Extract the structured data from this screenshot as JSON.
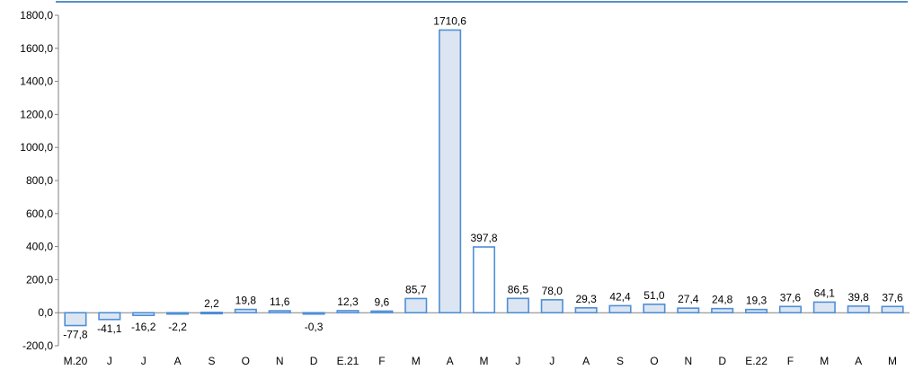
{
  "chart_data": {
    "type": "bar",
    "categories": [
      "M.20",
      "J",
      "J",
      "A",
      "S",
      "O",
      "N",
      "D",
      "E.21",
      "F",
      "M",
      "A",
      "M",
      "J",
      "J",
      "A",
      "S",
      "O",
      "N",
      "D",
      "E.22",
      "F",
      "M",
      "A",
      "M"
    ],
    "values": [
      -77.8,
      -41.1,
      -16.2,
      -2.2,
      2.2,
      19.8,
      11.6,
      -0.3,
      12.3,
      9.6,
      85.7,
      1710.6,
      397.8,
      86.5,
      78.0,
      29.3,
      42.4,
      51.0,
      27.4,
      24.8,
      19.3,
      37.6,
      64.1,
      39.8,
      37.6
    ],
    "data_labels": [
      "-77,8",
      "-41,1",
      "-16,2",
      "-2,2",
      "2,2",
      "19,8",
      "11,6",
      "-0,3",
      "12,3",
      "9,6",
      "85,7",
      "1710,6",
      "397,8",
      "86,5",
      "78,0",
      "29,3",
      "42,4",
      "51,0",
      "27,4",
      "24,8",
      "19,3",
      "37,6",
      "64,1",
      "39,8",
      "37,6"
    ],
    "highlight_index": 12,
    "ylim": [
      -200,
      1800
    ],
    "yticks": [
      {
        "value": -200,
        "label": "-200,0"
      },
      {
        "value": 0,
        "label": "0,0"
      },
      {
        "value": 200,
        "label": "200,0"
      },
      {
        "value": 400,
        "label": "400,0"
      },
      {
        "value": 600,
        "label": "600,0"
      },
      {
        "value": 800,
        "label": "800,0"
      },
      {
        "value": 1000,
        "label": "1000,0"
      },
      {
        "value": 1200,
        "label": "1200,0"
      },
      {
        "value": 1400,
        "label": "1400,0"
      },
      {
        "value": 1600,
        "label": "1600,0"
      },
      {
        "value": 1800,
        "label": "1800,0"
      }
    ],
    "grid": false,
    "colors": {
      "bar_fill": "#dce6f2",
      "highlight_fill": "#ffffff",
      "bar_stroke": "#4f8fd6",
      "top_rule": "#1f6fb5",
      "axis": "#808080"
    }
  }
}
